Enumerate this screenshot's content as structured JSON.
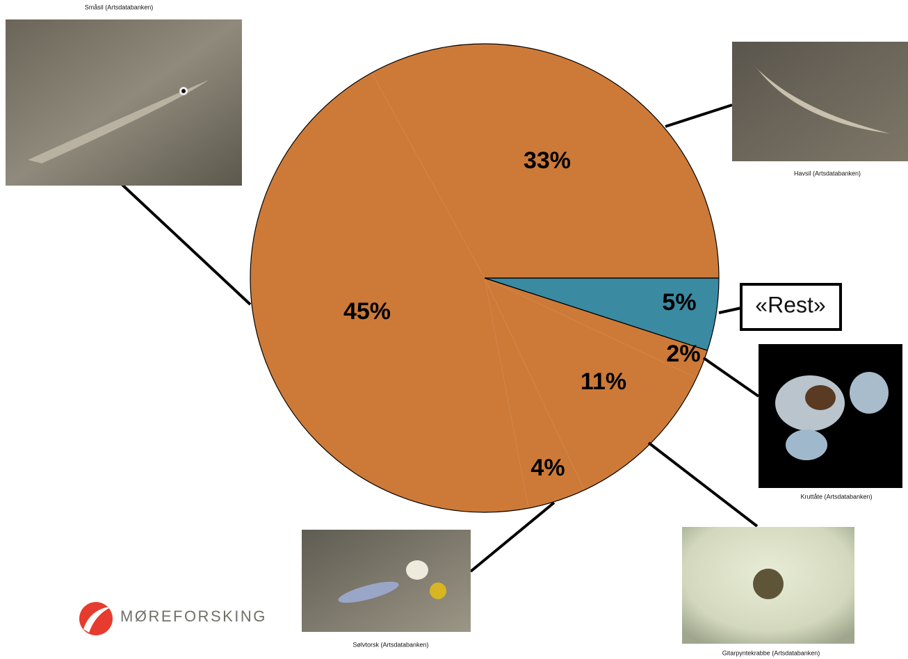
{
  "chart_data": {
    "type": "pie",
    "categories": [
      "«Rest»",
      "Kruttåte (Artsdatabanken)",
      "Gitarpyntekrabbe (Artsdatabanken)",
      "Sølvtorsk (Artsdatabanken)",
      "Småsil (Artsdatabanken)",
      "Havsil (Artsdatabanken)"
    ],
    "values": [
      5,
      2,
      11,
      4,
      45,
      33
    ],
    "value_labels": [
      "5%",
      "2%",
      "11%",
      "4%",
      "45%",
      "33%"
    ],
    "colors": [
      "#3a8aa2",
      "#cd7a39",
      "#cd7a39",
      "#cd7a39",
      "#cd7a39",
      "#cd7a39"
    ]
  },
  "logo": {
    "text": "MØREFORSKING"
  }
}
